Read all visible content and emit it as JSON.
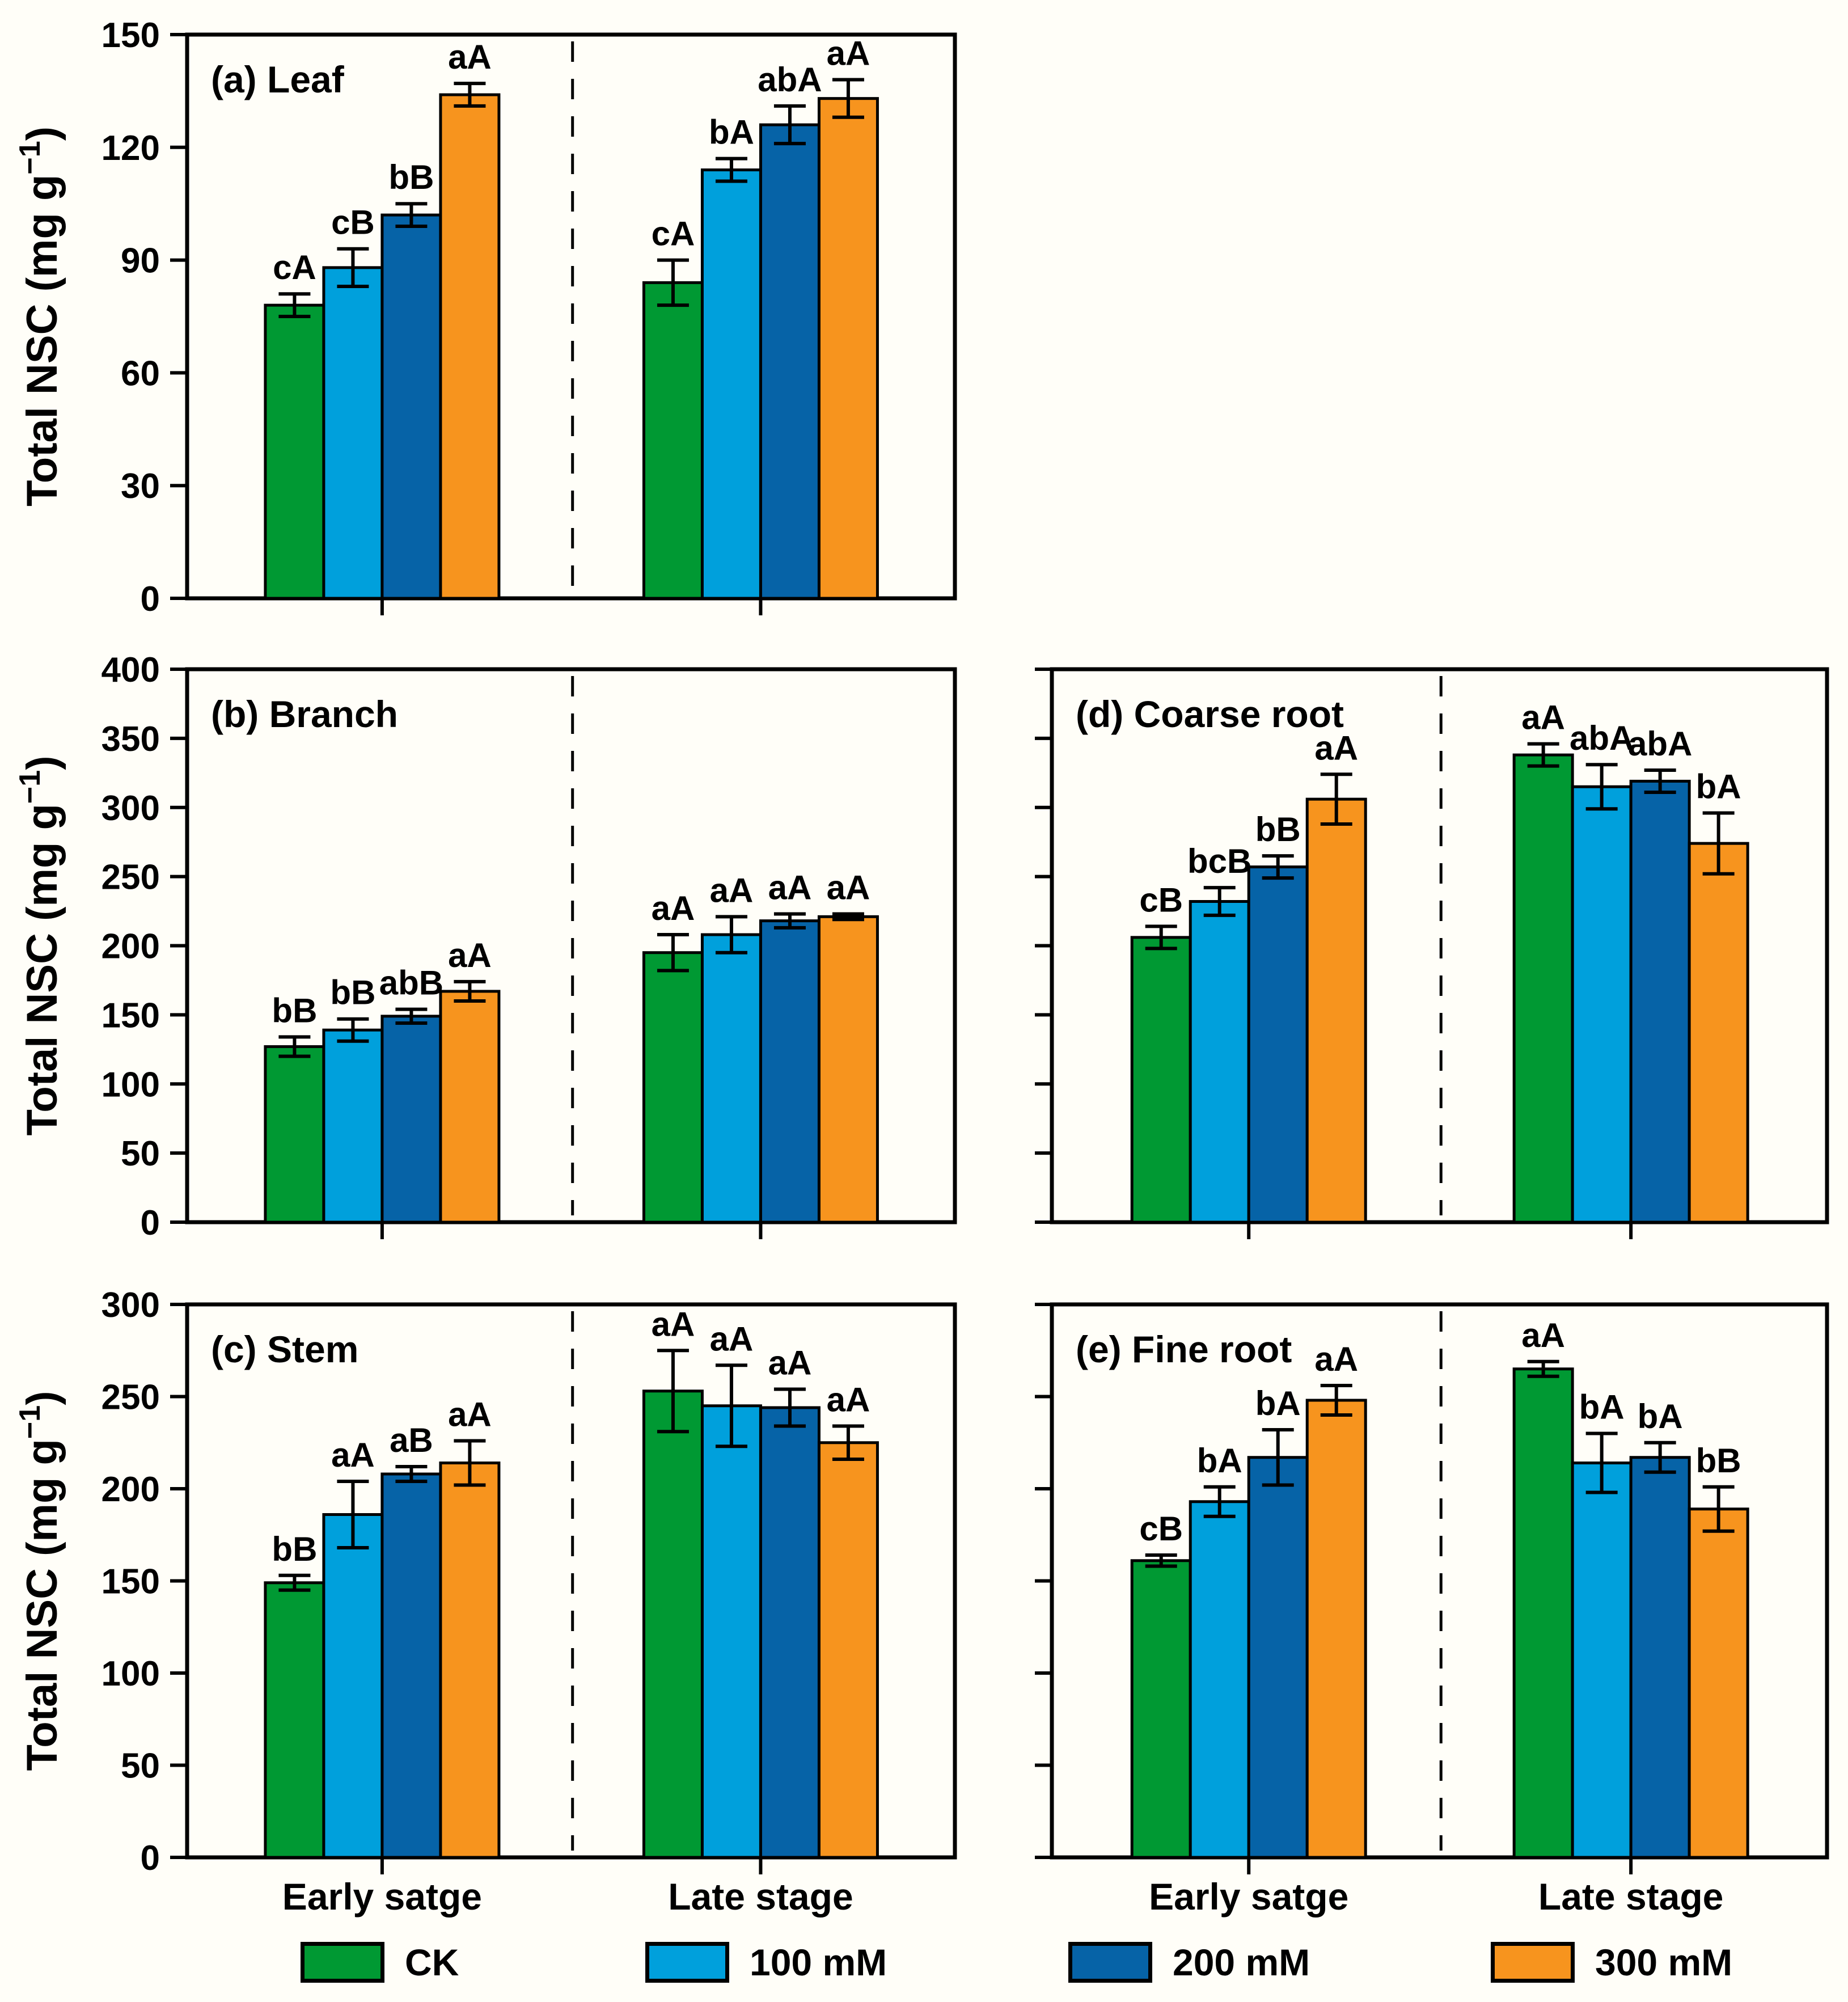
{
  "figure": {
    "background_color": "#FFFEF8",
    "stage_labels": [
      "Early  satge",
      "Late  stage"
    ],
    "legend": [
      {
        "label": "CK",
        "color": "#009933"
      },
      {
        "label": "100 mM",
        "color": "#00A0DC"
      },
      {
        "label": "200 mM",
        "color": "#0663A7"
      },
      {
        "label": "300 mM",
        "color": "#F7941E"
      }
    ]
  },
  "chart_data": [
    {
      "type": "bar",
      "panel": "a",
      "title": "(a) Leaf",
      "ylabel": "Total NSC (mg g⁻¹)",
      "ylim": [
        0,
        150
      ],
      "ytick_step": 30,
      "show_ytick_labels": true,
      "show_stage_labels": false,
      "categories": [
        "Early  satge",
        "Late  stage"
      ],
      "series": [
        {
          "name": "CK",
          "values": [
            78,
            84
          ],
          "errors": [
            3,
            6
          ],
          "letters": [
            "cA",
            "cA"
          ]
        },
        {
          "name": "100 mM",
          "values": [
            88,
            114
          ],
          "errors": [
            5,
            3
          ],
          "letters": [
            "cB",
            "bA"
          ]
        },
        {
          "name": "200 mM",
          "values": [
            102,
            126
          ],
          "errors": [
            3,
            5
          ],
          "letters": [
            "bB",
            "abA"
          ]
        },
        {
          "name": "300 mM",
          "values": [
            134,
            133
          ],
          "errors": [
            3,
            5
          ],
          "letters": [
            "aA",
            "aA"
          ]
        }
      ]
    },
    {
      "type": "bar",
      "panel": "b",
      "title": "(b) Branch",
      "ylabel": "Total NSC (mg g⁻¹)",
      "ylim": [
        0,
        400
      ],
      "ytick_step": 50,
      "show_ytick_labels": true,
      "show_stage_labels": false,
      "categories": [
        "Early  satge",
        "Late  stage"
      ],
      "series": [
        {
          "name": "CK",
          "values": [
            127,
            195
          ],
          "errors": [
            7,
            13
          ],
          "letters": [
            "bB",
            "aA"
          ]
        },
        {
          "name": "100 mM",
          "values": [
            139,
            208
          ],
          "errors": [
            8,
            13
          ],
          "letters": [
            "bB",
            "aA"
          ]
        },
        {
          "name": "200 mM",
          "values": [
            149,
            218
          ],
          "errors": [
            5,
            5
          ],
          "letters": [
            "abB",
            "aA"
          ]
        },
        {
          "name": "300 mM",
          "values": [
            167,
            221
          ],
          "errors": [
            7,
            2
          ],
          "letters": [
            "aA",
            "aA"
          ]
        }
      ]
    },
    {
      "type": "bar",
      "panel": "c",
      "title": "(c) Stem",
      "ylabel": "Total NSC (mg g⁻¹)",
      "ylim": [
        0,
        300
      ],
      "ytick_step": 50,
      "show_ytick_labels": true,
      "show_stage_labels": true,
      "categories": [
        "Early  satge",
        "Late  stage"
      ],
      "series": [
        {
          "name": "CK",
          "values": [
            149,
            253
          ],
          "errors": [
            4,
            22
          ],
          "letters": [
            "bB",
            "aA"
          ]
        },
        {
          "name": "100 mM",
          "values": [
            186,
            245
          ],
          "errors": [
            18,
            22
          ],
          "letters": [
            "aA",
            "aA"
          ]
        },
        {
          "name": "200 mM",
          "values": [
            208,
            244
          ],
          "errors": [
            4,
            10
          ],
          "letters": [
            "aB",
            "aA"
          ]
        },
        {
          "name": "300 mM",
          "values": [
            214,
            225
          ],
          "errors": [
            12,
            9
          ],
          "letters": [
            "aA",
            "aA"
          ]
        }
      ]
    },
    {
      "type": "bar",
      "panel": "d",
      "title": "(d) Coarse root",
      "ylabel": null,
      "ylim": [
        0,
        400
      ],
      "ytick_step": 50,
      "show_ytick_labels": false,
      "show_stage_labels": false,
      "categories": [
        "Early  satge",
        "Late  stage"
      ],
      "series": [
        {
          "name": "CK",
          "values": [
            206,
            338
          ],
          "errors": [
            8,
            8
          ],
          "letters": [
            "cB",
            "aA"
          ]
        },
        {
          "name": "100 mM",
          "values": [
            232,
            315
          ],
          "errors": [
            10,
            16
          ],
          "letters": [
            "bcB",
            "abA"
          ]
        },
        {
          "name": "200 mM",
          "values": [
            257,
            319
          ],
          "errors": [
            8,
            8
          ],
          "letters": [
            "bB",
            "abA"
          ]
        },
        {
          "name": "300 mM",
          "values": [
            306,
            274
          ],
          "errors": [
            18,
            22
          ],
          "letters": [
            "aA",
            "bA"
          ]
        }
      ]
    },
    {
      "type": "bar",
      "panel": "e",
      "title": "(e) Fine root",
      "ylabel": null,
      "ylim": [
        0,
        300
      ],
      "ytick_step": 50,
      "show_ytick_labels": false,
      "show_stage_labels": true,
      "categories": [
        "Early  satge",
        "Late  stage"
      ],
      "series": [
        {
          "name": "CK",
          "values": [
            161,
            265
          ],
          "errors": [
            3,
            4
          ],
          "letters": [
            "cB",
            "aA"
          ]
        },
        {
          "name": "100 mM",
          "values": [
            193,
            214
          ],
          "errors": [
            8,
            16
          ],
          "letters": [
            "bA",
            "bA"
          ]
        },
        {
          "name": "200 mM",
          "values": [
            217,
            217
          ],
          "errors": [
            15,
            8
          ],
          "letters": [
            "bA",
            "bA"
          ]
        },
        {
          "name": "300 mM",
          "values": [
            248,
            189
          ],
          "errors": [
            8,
            12
          ],
          "letters": [
            "aA",
            "bB"
          ]
        }
      ]
    }
  ]
}
